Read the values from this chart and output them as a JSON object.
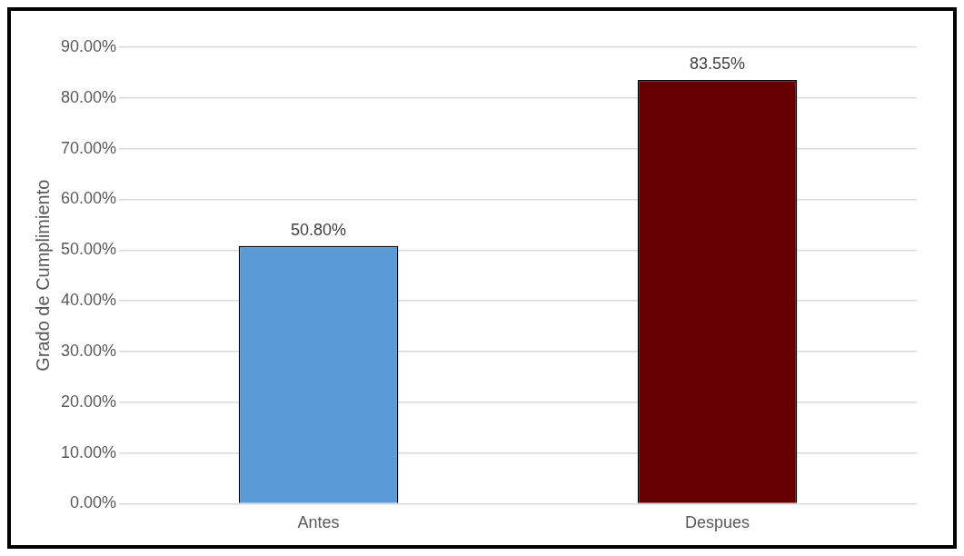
{
  "chart_data": {
    "type": "bar",
    "ylabel": "Grado de Cumplimiento",
    "categories": [
      "Antes",
      "Despues"
    ],
    "values": [
      50.8,
      83.55
    ],
    "colors": [
      "#5b9bd5",
      "#660000"
    ],
    "value_labels": [
      "50.80%",
      "83.55%"
    ],
    "ylim": [
      0,
      90
    ],
    "yticks": [
      {
        "value": 0,
        "label": "0.00%"
      },
      {
        "value": 10,
        "label": "10.00%"
      },
      {
        "value": 20,
        "label": "20.00%"
      },
      {
        "value": 30,
        "label": "30.00%"
      },
      {
        "value": 40,
        "label": "40.00%"
      },
      {
        "value": 50,
        "label": "50.00%"
      },
      {
        "value": 60,
        "label": "60.00%"
      },
      {
        "value": 70,
        "label": "70.00%"
      },
      {
        "value": 80,
        "label": "80.00%"
      },
      {
        "value": 90,
        "label": "90.00%"
      }
    ],
    "grid": "y",
    "legend": false
  }
}
